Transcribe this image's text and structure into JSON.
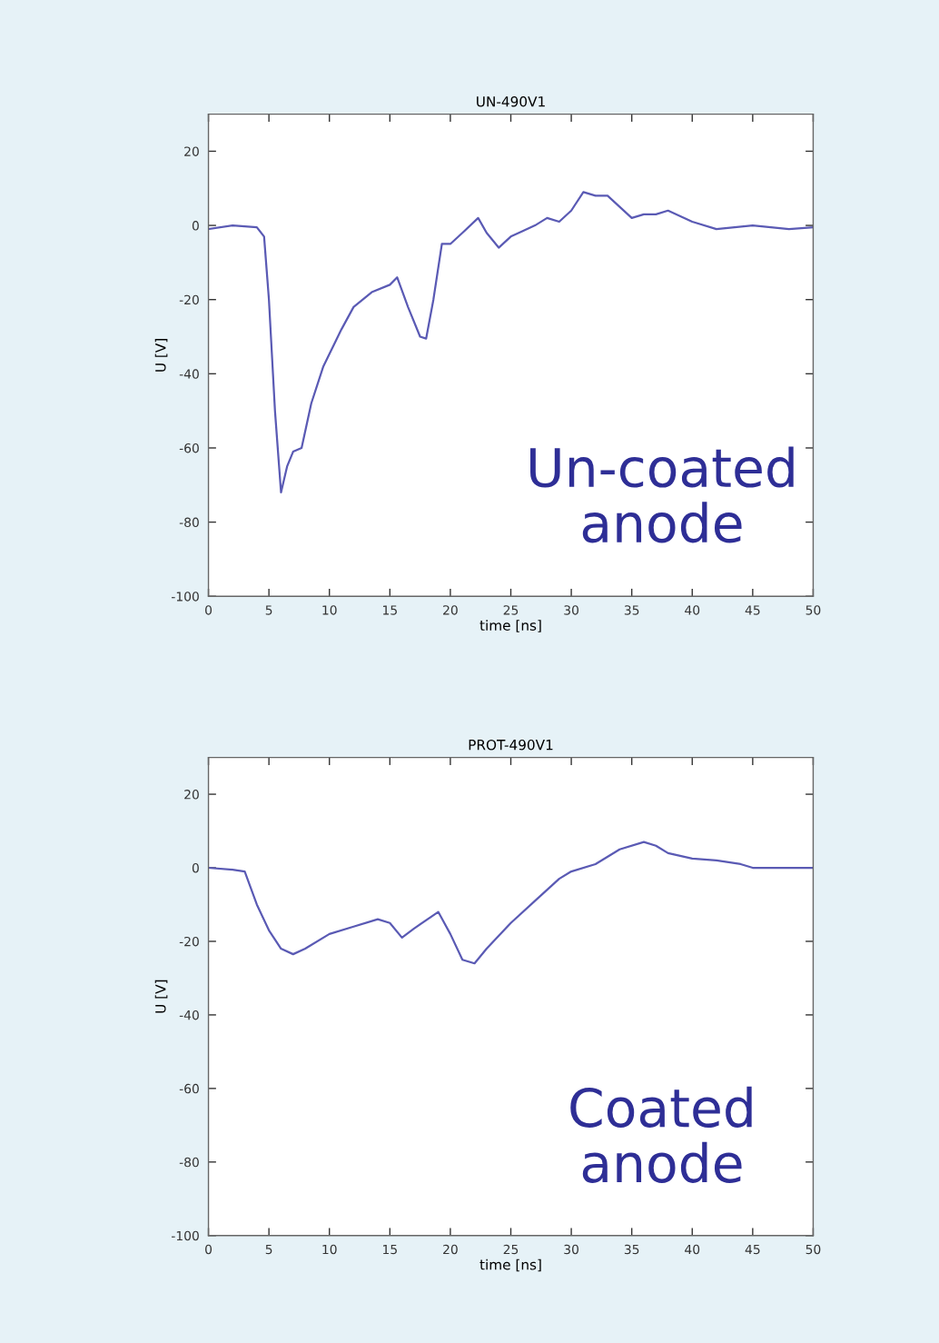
{
  "chart_data": [
    {
      "type": "line",
      "title": "UN-490V1",
      "xlabel": "time [ns]",
      "ylabel": "U [V]",
      "annotations": [
        "Un-coated\nanode"
      ],
      "xlim": [
        0,
        50
      ],
      "ylim": [
        -100,
        30
      ],
      "xticks": [
        0,
        5,
        10,
        15,
        20,
        25,
        30,
        35,
        40,
        45,
        50
      ],
      "yticks": [
        -100,
        -80,
        -60,
        -40,
        -20,
        0,
        20
      ],
      "grid": false,
      "legend": false,
      "series": [
        {
          "color": "#5a5ab4",
          "x": [
            0,
            2,
            4,
            4.6,
            5,
            5.5,
            6,
            6.5,
            7,
            7.7,
            8.5,
            9.5,
            11,
            12,
            13.5,
            15,
            15.6,
            16.5,
            17.5,
            18,
            18.6,
            19.3,
            20,
            21,
            22.3,
            23,
            24,
            25,
            27,
            28,
            29,
            30,
            31,
            32,
            33,
            34,
            35,
            36,
            37,
            38,
            40,
            42,
            45,
            48,
            50
          ],
          "values": [
            -1,
            0,
            -0.5,
            -3,
            -20,
            -50,
            -72,
            -65,
            -61,
            -60,
            -48,
            -38,
            -28,
            -22,
            -18,
            -16,
            -14,
            -22,
            -30,
            -30.5,
            -20,
            -5,
            -5,
            -2,
            2,
            -2,
            -6,
            -3,
            0,
            2,
            1,
            4,
            9,
            8,
            8,
            5,
            2,
            3,
            3,
            4,
            1,
            -1,
            0,
            -1,
            -0.5
          ]
        }
      ]
    },
    {
      "type": "line",
      "title": "PROT-490V1",
      "xlabel": "time [ns]",
      "ylabel": "U [V]",
      "annotations": [
        "Coated\nanode"
      ],
      "xlim": [
        0,
        50
      ],
      "ylim": [
        -100,
        30
      ],
      "xticks": [
        0,
        5,
        10,
        15,
        20,
        25,
        30,
        35,
        40,
        45,
        50
      ],
      "yticks": [
        -100,
        -80,
        -60,
        -40,
        -20,
        0,
        20
      ],
      "grid": false,
      "legend": false,
      "series": [
        {
          "color": "#5a5ab4",
          "x": [
            0,
            2,
            3,
            4,
            5,
            6,
            7,
            8,
            10,
            12,
            14,
            15,
            16,
            17,
            19,
            20,
            21,
            22,
            23,
            25,
            27,
            29,
            30,
            32,
            34,
            36,
            37,
            38,
            40,
            42,
            44,
            45,
            47,
            50
          ],
          "values": [
            0,
            -0.5,
            -1,
            -10,
            -17,
            -22,
            -23.5,
            -22,
            -18,
            -16,
            -14,
            -15,
            -19,
            -16.5,
            -12,
            -18,
            -25,
            -26,
            -22,
            -15,
            -9,
            -3,
            -1,
            1,
            5,
            7,
            6,
            4,
            2.5,
            2,
            1,
            0,
            0,
            0
          ]
        }
      ]
    }
  ]
}
